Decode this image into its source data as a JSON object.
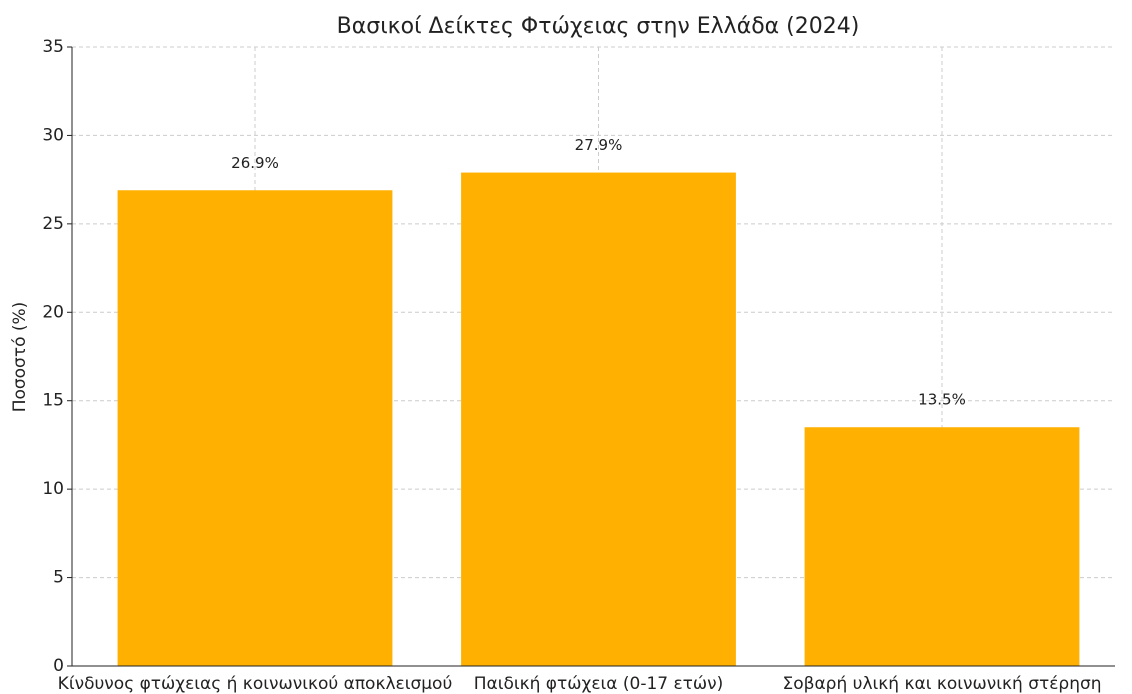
{
  "chart_data": {
    "type": "bar",
    "title": "Βασικοί Δείκτες Φτώχειας στην Ελλάδα (2024)",
    "y_label": "Ποσοστό (%)",
    "categories": [
      "Κίνδυνος φτώχειας ή κοινωνικού αποκλεισμού",
      "Παιδική φτώχεια (0-17 ετών)",
      "Σοβαρή υλική και κοινωνική στέρηση"
    ],
    "values": [
      26.9,
      27.9,
      13.5
    ],
    "value_labels": [
      "26.9%",
      "27.9%",
      "13.5%"
    ],
    "color": "#ffb000",
    "ylim": [
      0,
      35
    ],
    "yticks": [
      0,
      5,
      10,
      15,
      20,
      25,
      30,
      35
    ],
    "grid": true
  }
}
